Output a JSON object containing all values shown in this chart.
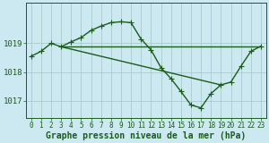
{
  "xlabel": "Graphe pression niveau de la mer (hPa)",
  "xlim": [
    -0.5,
    23.5
  ],
  "ylim": [
    1016.4,
    1020.4
  ],
  "yticks": [
    1017,
    1018,
    1019
  ],
  "ytick_labels": [
    "1017",
    "1018",
    "1019"
  ],
  "xticks": [
    0,
    1,
    2,
    3,
    4,
    5,
    6,
    7,
    8,
    9,
    10,
    11,
    12,
    13,
    14,
    15,
    16,
    17,
    18,
    19,
    20,
    21,
    22,
    23
  ],
  "background_color": "#cce8f0",
  "grid_color": "#aacccc",
  "line_color": "#1a5c1a",
  "line1_x": [
    0,
    1,
    2,
    3,
    4,
    5,
    6,
    7,
    8,
    9,
    10,
    11,
    12,
    13,
    14,
    15,
    16,
    17,
    18,
    19,
    20,
    21,
    22,
    23
  ],
  "line1_y": [
    1018.55,
    1018.72,
    1019.0,
    1018.88,
    1019.05,
    1019.2,
    1019.45,
    1019.6,
    1019.72,
    1019.75,
    1019.72,
    1019.15,
    1018.77,
    1018.15,
    1017.77,
    1017.32,
    1016.85,
    1016.75,
    1017.25,
    1017.55,
    1017.65,
    1018.2,
    1018.72,
    1018.9
  ],
  "line2_x": [
    3,
    23
  ],
  "line2_y": [
    1018.88,
    1018.88
  ],
  "line3_x": [
    3,
    19
  ],
  "line3_y": [
    1018.88,
    1017.55
  ],
  "marker_size": 2.5,
  "line_width": 1.0,
  "font_size_xlabel": 7,
  "font_size_ytick": 6.5,
  "font_size_xtick": 5.5
}
